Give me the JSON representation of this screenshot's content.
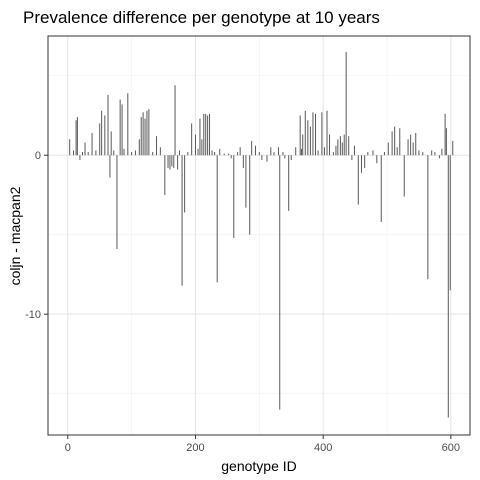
{
  "chart_data": {
    "type": "bar",
    "title": "Prevalence difference per genotype at 10 years",
    "xlabel": "genotype ID",
    "ylabel": "coljn - macpan2",
    "x": [
      3,
      9,
      13,
      15,
      19,
      23,
      27,
      32,
      38,
      44,
      50,
      53,
      58,
      63,
      66,
      68,
      72,
      77,
      82,
      85,
      88,
      94,
      100,
      106,
      112,
      115,
      118,
      121,
      124,
      127,
      133,
      139,
      145,
      152,
      157,
      160,
      163,
      166,
      168,
      172,
      175,
      179,
      183,
      188,
      194,
      200,
      204,
      207,
      210,
      213,
      216,
      219,
      222,
      226,
      230,
      234,
      238,
      245,
      252,
      256,
      260,
      266,
      270,
      275,
      279,
      285,
      288,
      294,
      300,
      304,
      312,
      318,
      323,
      330,
      332,
      337,
      340,
      346,
      350,
      357,
      364,
      366,
      368,
      372,
      376,
      380,
      384,
      388,
      392,
      398,
      402,
      406,
      410,
      416,
      420,
      423,
      427,
      430,
      433,
      436,
      440,
      445,
      449,
      455,
      460,
      465,
      470,
      478,
      484,
      491,
      496,
      502,
      508,
      512,
      516,
      520,
      527,
      533,
      537,
      541,
      545,
      550,
      556,
      564,
      570,
      575,
      582,
      586,
      591,
      593,
      596,
      599,
      603
    ],
    "values": [
      1.0,
      0.3,
      2.2,
      2.4,
      -0.3,
      0.2,
      0.8,
      0.2,
      1.4,
      0.3,
      2.0,
      2.8,
      2.5,
      3.8,
      -1.4,
      1.5,
      0.3,
      -5.9,
      3.5,
      3.2,
      0.4,
      3.9,
      0.2,
      0.3,
      1.0,
      2.4,
      2.7,
      2.3,
      2.8,
      2.9,
      0.2,
      1.2,
      0.5,
      -2.5,
      -0.8,
      -0.9,
      -0.7,
      -0.8,
      4.4,
      -0.9,
      0.3,
      -8.2,
      -3.6,
      0.2,
      2.0,
      1.3,
      0.4,
      2.3,
      1.0,
      2.6,
      2.6,
      2.5,
      2.6,
      0.3,
      0.2,
      -8.0,
      0.4,
      0.1,
      0.1,
      -0.2,
      -5.2,
      0.2,
      0.5,
      -0.8,
      -3.3,
      -5.0,
      0.9,
      0.6,
      0.2,
      -0.3,
      -0.4,
      0.5,
      0.2,
      0.5,
      -16.0,
      0.2,
      -0.2,
      -3.5,
      -0.3,
      0.5,
      2.5,
      0.4,
      1.3,
      2.8,
      2.2,
      1.8,
      2.7,
      2.6,
      0.3,
      2.7,
      0.5,
      2.8,
      1.3,
      0.2,
      0.6,
      1.0,
      1.2,
      0.8,
      1.3,
      6.5,
      1.2,
      -0.3,
      0.6,
      -3.1,
      -1.1,
      -0.8,
      0.2,
      0.3,
      -0.5,
      -4.2,
      0.2,
      0.8,
      1.5,
      1.8,
      0.5,
      1.7,
      -2.6,
      1.0,
      1.3,
      0.8,
      1.4,
      0.3,
      0.2,
      -7.8,
      0.3,
      0.2,
      -0.2,
      0.4,
      2.6,
      1.7,
      -16.5,
      -8.5,
      0.9
    ],
    "color": "#595959",
    "xlim": [
      -31,
      630
    ],
    "ylim": [
      -17.6,
      7.5
    ],
    "xticks": [
      0,
      200,
      400,
      600
    ],
    "yticks": [
      0,
      -10
    ],
    "xminor": [
      100,
      300,
      500
    ],
    "yminor": [
      5,
      -5,
      -15
    ],
    "grid": true
  }
}
